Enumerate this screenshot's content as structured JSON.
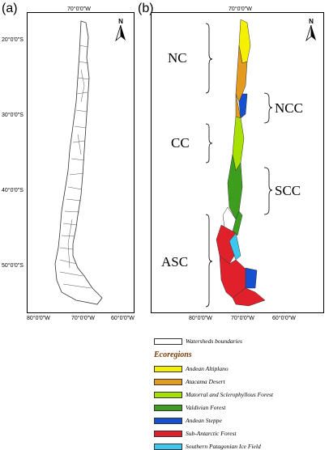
{
  "panels": {
    "a": {
      "label": "(a)"
    },
    "b": {
      "label": "(b)"
    }
  },
  "top_axis_label": "70°0'0\"W",
  "left_axis_ticks": [
    "20°0'0\"S",
    "30°0'0\"S",
    "40°0'0\"S",
    "50°0'0\"S"
  ],
  "bottom_axis_ticks": [
    "80°0'0\"W",
    "70°0'0\"W",
    "60°0'0\"W"
  ],
  "north_arrow": {
    "label": "N",
    "icon": "north-arrow-icon"
  },
  "macrozones": [
    "NC",
    "NCC",
    "CC",
    "SCC",
    "ASC"
  ],
  "legend": {
    "boundary_label": "Watersheds boundaries",
    "title": "Ecoregions",
    "items": [
      {
        "name": "Andean Altiplano",
        "color": "#f5f000"
      },
      {
        "name": "Atacama Desert",
        "color": "#e39a1e"
      },
      {
        "name": "Matorral and Sclerophyllous Forest",
        "color": "#a8e000"
      },
      {
        "name": "Valdivian Forest",
        "color": "#3c9e1c"
      },
      {
        "name": "Andean Steppe",
        "color": "#1550d0"
      },
      {
        "name": "Sub-Antarctic Forest",
        "color": "#e0202a"
      },
      {
        "name": "Southern Patagonian Ice Field",
        "color": "#3cc8ee"
      }
    ]
  }
}
